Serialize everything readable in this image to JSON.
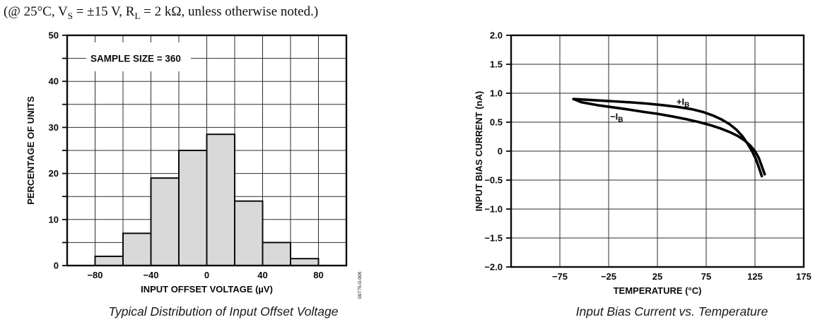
{
  "header": {
    "part1": "(@ 25°C, V",
    "sub1": "S",
    "part2": " = ±15 V, R",
    "sub2": "L",
    "part3": " = 2 kΩ, unless otherwise noted.)"
  },
  "chart_data": [
    {
      "type": "bar",
      "title": "Typical Distribution of Input Offset Voltage",
      "annotation": "SAMPLE SIZE = 360",
      "xlabel": "INPUT OFFSET VOLTAGE (µV)",
      "ylabel": "PERCENTAGE OF UNITS",
      "figure_number": "00775-0-005",
      "xlim": [
        -100,
        100
      ],
      "ylim": [
        0,
        50
      ],
      "x_grid_step": 20,
      "y_grid_step": 5,
      "bin_edges": [
        -80,
        -60,
        -40,
        -20,
        0,
        20,
        40,
        60,
        80
      ],
      "values": [
        2,
        7,
        19,
        25,
        28.5,
        14,
        5,
        1.5
      ],
      "x_tick_values": [
        -80,
        -40,
        0,
        40,
        80
      ],
      "x_tick_labels": [
        "−80",
        "−40",
        "0",
        "40",
        "80"
      ],
      "y_tick_values": [
        0,
        10,
        20,
        30,
        40,
        50
      ],
      "y_tick_labels": [
        "0",
        "10",
        "20",
        "30",
        "40",
        "50"
      ],
      "bar_fill": "#d9d9d9",
      "grid": true,
      "legend": "none"
    },
    {
      "type": "line",
      "title": "Input Bias Current vs. Temperature",
      "xlabel": "TEMPERATURE (°C)",
      "ylabel": "INPUT BIAS CURRENT (nA)",
      "xlim": [
        -125,
        175
      ],
      "ylim": [
        -2,
        2
      ],
      "x_grid_step": 50,
      "y_grid_step": 0.5,
      "x_tick_values": [
        -75,
        -25,
        25,
        75,
        125,
        175
      ],
      "x_tick_labels": [
        "−75",
        "−25",
        "25",
        "75",
        "125",
        "175"
      ],
      "y_tick_values": [
        2,
        1.5,
        1,
        0.5,
        0,
        -0.5,
        -1,
        -1.5,
        -2
      ],
      "y_tick_labels": [
        "2.0",
        "1.5",
        "1.0",
        "0.5",
        "0",
        "−0.5",
        "−1.0",
        "−1.5",
        "−2.0"
      ],
      "grid": true,
      "legend": "inline-labels",
      "series": [
        {
          "name": "plus-IB",
          "label": {
            "text": "+I",
            "sub": "B",
            "x": 44.5,
            "y": 0.8
          },
          "x": [
            -61,
            -45,
            -30,
            -15,
            0,
            15,
            30,
            45,
            60,
            72,
            82,
            91,
            99,
            106,
            112,
            117,
            122,
            126,
            129,
            132
          ],
          "y": [
            0.9,
            0.885,
            0.87,
            0.855,
            0.84,
            0.82,
            0.795,
            0.765,
            0.725,
            0.675,
            0.615,
            0.545,
            0.465,
            0.37,
            0.26,
            0.14,
            0,
            -0.14,
            -0.28,
            -0.43
          ]
        },
        {
          "name": "minus-IB",
          "label": {
            "text": "−I",
            "sub": "B",
            "x": -23.5,
            "y": 0.54
          },
          "x": [
            -61,
            -53,
            -45,
            -35,
            -20,
            -5,
            10,
            25,
            40,
            55,
            68,
            80,
            90,
            99,
            107,
            114,
            120,
            125,
            129,
            132,
            135
          ],
          "y": [
            0.9,
            0.845,
            0.82,
            0.79,
            0.755,
            0.72,
            0.68,
            0.645,
            0.6,
            0.55,
            0.5,
            0.445,
            0.39,
            0.33,
            0.265,
            0.19,
            0.1,
            0,
            -0.12,
            -0.26,
            -0.4
          ]
        }
      ]
    }
  ]
}
